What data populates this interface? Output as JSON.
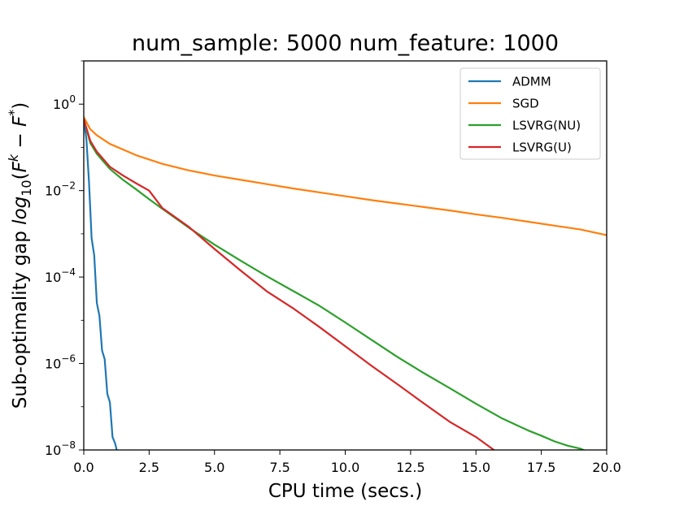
{
  "chart_data": {
    "type": "line",
    "title": "num_sample: 5000 num_feature: 1000",
    "xlabel": "CPU time (secs.)",
    "ylabel_prefix": "Sub-optimality gap ",
    "ylabel_math": "log",
    "ylabel_sub": "10",
    "ylabel_open": "(",
    "ylabel_F1": "F",
    "ylabel_sup_k": "k",
    "ylabel_minus": " − ",
    "ylabel_F2": "F",
    "ylabel_sup_star": "*",
    "ylabel_close": ")",
    "xlim": [
      0,
      20
    ],
    "ylim_log10": [
      -8,
      1
    ],
    "yscale": "log",
    "grid": false,
    "legend_position": "top-right",
    "xticks": [
      {
        "value": 0,
        "label": "0.0"
      },
      {
        "value": 2.5,
        "label": "2.5"
      },
      {
        "value": 5,
        "label": "5.0"
      },
      {
        "value": 7.5,
        "label": "7.5"
      },
      {
        "value": 10,
        "label": "10.0"
      },
      {
        "value": 12.5,
        "label": "12.5"
      },
      {
        "value": 15,
        "label": "15.0"
      },
      {
        "value": 17.5,
        "label": "17.5"
      },
      {
        "value": 20,
        "label": "20.0"
      }
    ],
    "yticks": [
      {
        "exp": 0,
        "base": "10",
        "sup": "0"
      },
      {
        "exp": -2,
        "base": "10",
        "sup": "−2"
      },
      {
        "exp": -4,
        "base": "10",
        "sup": "−4"
      },
      {
        "exp": -6,
        "base": "10",
        "sup": "−6"
      },
      {
        "exp": -8,
        "base": "10",
        "sup": "−8"
      }
    ],
    "series": [
      {
        "name": "ADMM",
        "color": "#1f77b4",
        "x": [
          0,
          0.1,
          0.2,
          0.3,
          0.4,
          0.5,
          0.6,
          0.7,
          0.8,
          0.9,
          1.0,
          1.1,
          1.2,
          1.3
        ],
        "log10_y": [
          -0.35,
          -0.8,
          -1.8,
          -3.1,
          -3.5,
          -4.6,
          -4.9,
          -5.7,
          -5.9,
          -6.7,
          -6.9,
          -7.7,
          -7.85,
          -8.1
        ]
      },
      {
        "name": "SGD",
        "color": "#ff7f0e",
        "x": [
          0,
          0.25,
          0.5,
          1,
          2,
          3,
          4,
          5,
          6,
          7,
          8,
          9,
          10,
          11,
          12,
          13,
          14,
          15,
          16,
          17,
          18,
          19,
          20
        ],
        "log10_y": [
          -0.3,
          -0.58,
          -0.72,
          -0.92,
          -1.18,
          -1.38,
          -1.53,
          -1.65,
          -1.75,
          -1.85,
          -1.95,
          -2.04,
          -2.13,
          -2.22,
          -2.3,
          -2.38,
          -2.46,
          -2.55,
          -2.63,
          -2.72,
          -2.81,
          -2.9,
          -3.03
        ]
      },
      {
        "name": "LSVRG(NU)",
        "color": "#2ca02c",
        "x": [
          0,
          0.25,
          0.5,
          1,
          1.5,
          2,
          2.5,
          3,
          4,
          5,
          6,
          7,
          8,
          9,
          10,
          11,
          12,
          13,
          14,
          15,
          16,
          17,
          17.5,
          18,
          18.5,
          19,
          19.3
        ],
        "log10_y": [
          -0.35,
          -0.9,
          -1.15,
          -1.5,
          -1.75,
          -1.97,
          -2.2,
          -2.42,
          -2.85,
          -3.25,
          -3.62,
          -3.98,
          -4.32,
          -4.66,
          -5.05,
          -5.45,
          -5.85,
          -6.22,
          -6.57,
          -6.93,
          -7.27,
          -7.55,
          -7.67,
          -7.8,
          -7.9,
          -7.97,
          -8.05
        ]
      },
      {
        "name": "LSVRG(U)",
        "color": "#d62728",
        "x": [
          0,
          0.25,
          0.5,
          1,
          1.5,
          2,
          2.5,
          3,
          4,
          5,
          6,
          7,
          8,
          9,
          10,
          11,
          12,
          13,
          14,
          15,
          15.8
        ],
        "log10_y": [
          -0.35,
          -0.85,
          -1.1,
          -1.45,
          -1.65,
          -1.83,
          -2.0,
          -2.4,
          -2.83,
          -3.35,
          -3.85,
          -4.33,
          -4.72,
          -5.15,
          -5.6,
          -6.05,
          -6.48,
          -6.92,
          -7.35,
          -7.7,
          -8.05
        ]
      }
    ]
  }
}
